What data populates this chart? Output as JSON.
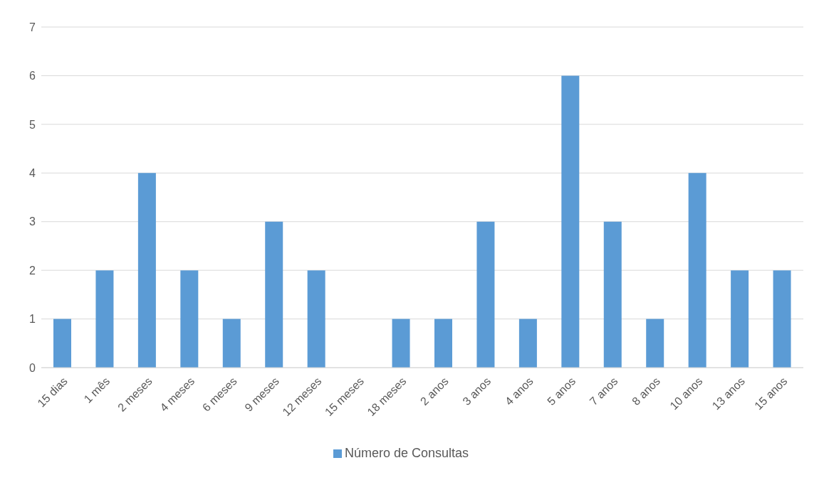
{
  "chart_data": {
    "type": "bar",
    "categories": [
      "15 dias",
      "1 mês",
      "2 meses",
      "4 meses",
      "6 meses",
      "9 meses",
      "12 meses",
      "15 meses",
      "18 meses",
      "2 anos",
      "3 anos",
      "4 anos",
      "5 anos",
      "7 anos",
      "8 anos",
      "10 anos",
      "13 anos",
      "15 anos"
    ],
    "series": [
      {
        "name": "Número de Consultas",
        "color": "#5b9bd5",
        "values": [
          1,
          2,
          4,
          2,
          1,
          3,
          2,
          0,
          1,
          1,
          3,
          1,
          6,
          3,
          1,
          4,
          2,
          2
        ]
      }
    ],
    "ylim": [
      0,
      7
    ],
    "yticks": [
      0,
      1,
      2,
      3,
      4,
      5,
      6,
      7
    ],
    "grid": "y",
    "legend": "bottom"
  }
}
